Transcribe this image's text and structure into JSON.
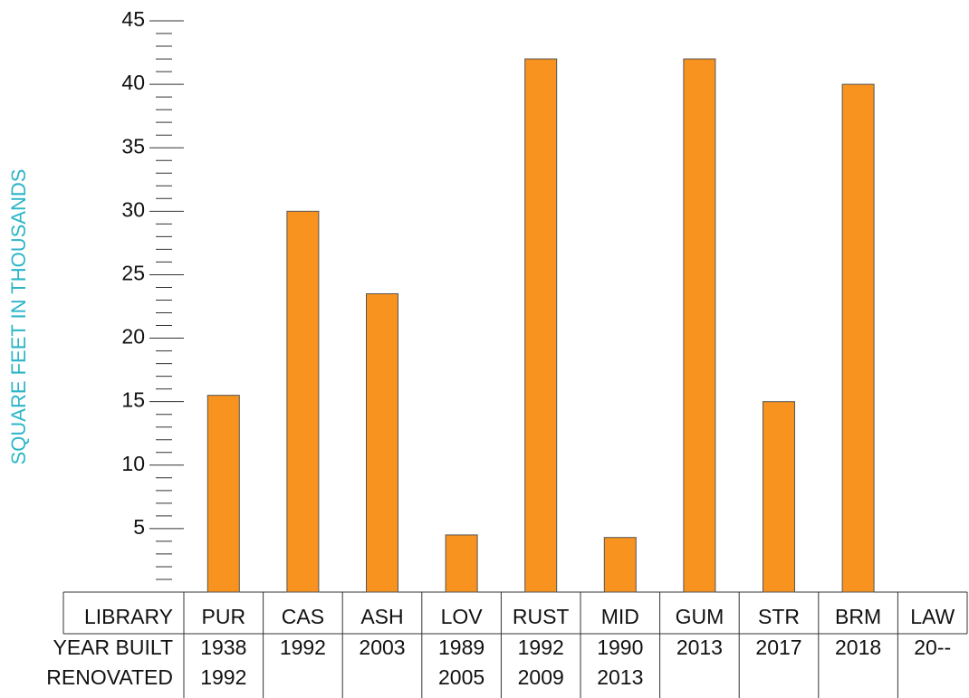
{
  "chart_data": {
    "type": "bar",
    "y_label": "SQUARE FEET IN THOUSANDS",
    "categories": [
      "PUR",
      "CAS",
      "ASH",
      "LOV",
      "RUST",
      "MID",
      "GUM",
      "STR",
      "BRM",
      "LAW"
    ],
    "values": [
      15.5,
      30,
      23.5,
      4.5,
      42,
      4.3,
      42,
      15,
      40,
      null
    ],
    "color": "#f7931e",
    "ylim": [
      0,
      45
    ],
    "yticks": [
      5,
      10,
      15,
      20,
      25,
      30,
      35,
      40,
      45
    ],
    "yminor_step": 1,
    "table": {
      "row_labels": [
        "LIBRARY",
        "YEAR BUILT",
        "RENOVATED"
      ],
      "year_built": [
        "1938",
        "1992",
        "2003",
        "1989",
        "1992",
        "1990",
        "2013",
        "2017",
        "2018",
        "20--"
      ],
      "renovated": [
        "1992",
        null,
        null,
        "2005",
        "2009",
        "2013",
        null,
        null,
        null,
        null
      ]
    }
  }
}
